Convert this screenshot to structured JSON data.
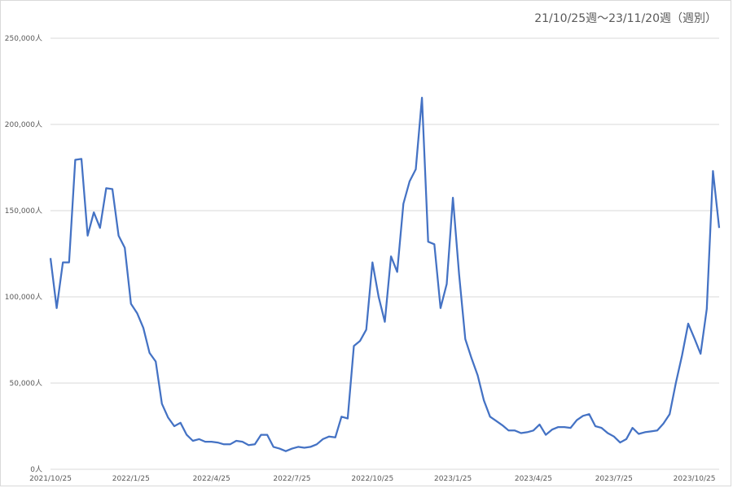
{
  "chart_data": {
    "type": "line",
    "title": "21/10/25週〜23/11/20週（週別）",
    "xlabel": "",
    "ylabel": "",
    "ylim": [
      0,
      250000
    ],
    "grid": true,
    "legend": "none",
    "color": "#4472C4",
    "y_ticks": [
      0,
      50000,
      100000,
      150000,
      200000,
      250000
    ],
    "y_tick_labels": [
      "0人",
      "50,000人",
      "100,000人",
      "150,000人",
      "200,000人",
      "250,000人"
    ],
    "x_tick_labels": [
      "2021/10/25",
      "2022/1/25",
      "2022/4/25",
      "2022/7/25",
      "2022/10/25",
      "2023/1/25",
      "2023/4/25",
      "2023/7/25",
      "2023/10/25"
    ],
    "x_tick_weeks": [
      0,
      13,
      26,
      39,
      52,
      65,
      78,
      91,
      104
    ],
    "values": [
      122500,
      93500,
      120000,
      120000,
      179500,
      180000,
      135500,
      149000,
      140000,
      163000,
      162500,
      135500,
      128500,
      96000,
      90500,
      82000,
      67500,
      62500,
      38000,
      30000,
      25000,
      27000,
      20000,
      16500,
      17500,
      16000,
      16000,
      15500,
      14500,
      14500,
      16500,
      16000,
      14000,
      14500,
      20000,
      20000,
      13000,
      12000,
      10500,
      12000,
      13000,
      12500,
      13000,
      14500,
      17500,
      19000,
      18500,
      30500,
      29500,
      71500,
      74500,
      81000,
      120000,
      100000,
      85500,
      123500,
      114500,
      154000,
      167000,
      174000,
      215500,
      132000,
      130500,
      93500,
      107500,
      157500,
      113000,
      75500,
      64500,
      54500,
      40000,
      30500,
      28000,
      25500,
      22500,
      22500,
      21000,
      21500,
      22500,
      26000,
      20000,
      23000,
      24500,
      24500,
      24000,
      28500,
      31000,
      32000,
      25000,
      24000,
      21000,
      19000,
      15500,
      17500,
      24000,
      20500,
      21500,
      22000,
      22500,
      26500,
      32000,
      50000,
      66000,
      84500,
      76000,
      67000,
      93000,
      173000,
      140000
    ]
  }
}
